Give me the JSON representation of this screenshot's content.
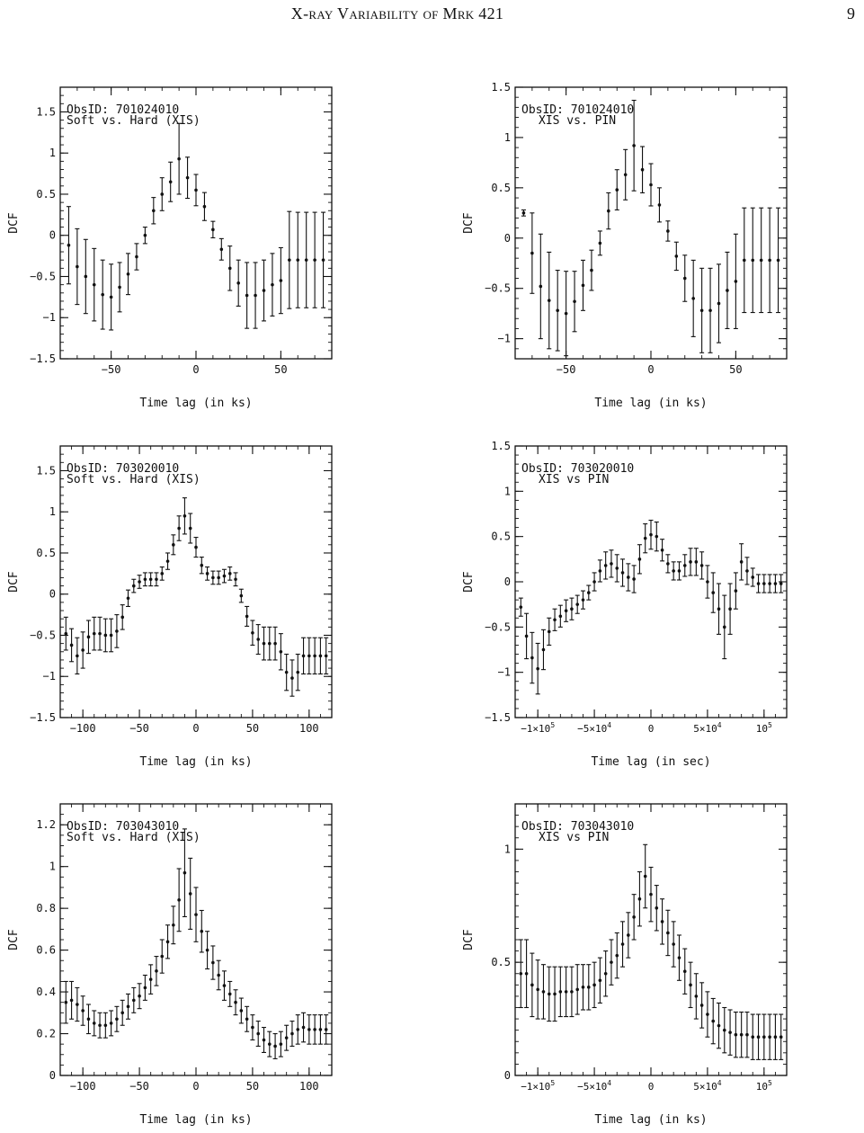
{
  "header": {
    "title": "X-ray Variability of Mrk 421",
    "page_number": "9"
  },
  "chart_data": [
    {
      "type": "scatter",
      "annotation": [
        "ObsID: 701024010",
        "Soft vs. Hard (XIS)"
      ],
      "xlabel": "Time lag (in ks)",
      "ylabel": "DCF",
      "xlim": [
        -80,
        80
      ],
      "ylim": [
        -1.5,
        1.8
      ],
      "xticks": [
        -50,
        0,
        50
      ],
      "yticks": [
        -1.5,
        -1,
        -0.5,
        0,
        0.5,
        1,
        1.5
      ],
      "x": [
        -75,
        -70,
        -65,
        -60,
        -55,
        -50,
        -45,
        -40,
        -35,
        -30,
        -25,
        -20,
        -15,
        -10,
        -5,
        0,
        5,
        10,
        15,
        20,
        25,
        30,
        35,
        40,
        45,
        50,
        55,
        60,
        65,
        70,
        75
      ],
      "y": [
        -0.12,
        -0.38,
        -0.5,
        -0.6,
        -0.72,
        -0.75,
        -0.63,
        -0.47,
        -0.26,
        0.0,
        0.3,
        0.5,
        0.65,
        0.93,
        0.7,
        0.55,
        0.35,
        0.07,
        -0.17,
        -0.4,
        -0.58,
        -0.73,
        -0.73,
        -0.67,
        -0.6,
        -0.55,
        -0.3,
        -0.3,
        -0.3,
        -0.3,
        -0.3
      ],
      "err": [
        0.47,
        0.46,
        0.45,
        0.44,
        0.42,
        0.4,
        0.3,
        0.25,
        0.16,
        0.1,
        0.16,
        0.2,
        0.24,
        0.43,
        0.25,
        0.19,
        0.17,
        0.1,
        0.13,
        0.27,
        0.28,
        0.4,
        0.4,
        0.37,
        0.38,
        0.4,
        0.59,
        0.58,
        0.58,
        0.58,
        0.58
      ]
    },
    {
      "type": "scatter",
      "annotation": [
        "ObsID: 701024010",
        "XIS vs. PIN"
      ],
      "xlabel": "Time lag (in ks)",
      "ylabel": "DCF",
      "xlim": [
        -80,
        80
      ],
      "ylim": [
        -1.2,
        1.5
      ],
      "xticks": [
        -50,
        0,
        50
      ],
      "yticks": [
        -1,
        -0.5,
        0,
        0.5,
        1,
        1.5
      ],
      "x": [
        -75,
        -70,
        -65,
        -60,
        -55,
        -50,
        -45,
        -40,
        -35,
        -30,
        -25,
        -20,
        -15,
        -10,
        -5,
        0,
        5,
        10,
        15,
        20,
        25,
        30,
        35,
        40,
        45,
        50,
        55,
        60,
        65,
        70,
        75
      ],
      "y": [
        0.25,
        -0.15,
        -0.48,
        -0.62,
        -0.72,
        -0.75,
        -0.63,
        -0.47,
        -0.32,
        -0.05,
        0.27,
        0.48,
        0.63,
        0.92,
        0.68,
        0.53,
        0.33,
        0.07,
        -0.18,
        -0.4,
        -0.6,
        -0.72,
        -0.72,
        -0.65,
        -0.52,
        -0.43,
        -0.22,
        -0.22,
        -0.22,
        -0.22,
        -0.22
      ],
      "err": [
        0.03,
        0.4,
        0.52,
        0.48,
        0.4,
        0.42,
        0.3,
        0.25,
        0.2,
        0.12,
        0.18,
        0.2,
        0.25,
        0.45,
        0.23,
        0.21,
        0.17,
        0.1,
        0.14,
        0.23,
        0.38,
        0.42,
        0.42,
        0.39,
        0.38,
        0.47,
        0.52,
        0.52,
        0.52,
        0.52,
        0.52
      ]
    },
    {
      "type": "scatter",
      "annotation": [
        "ObsID: 703020010",
        "Soft vs. Hard (XIS)"
      ],
      "xlabel": "Time lag (in ks)",
      "ylabel": "DCF",
      "xlim": [
        -120,
        120
      ],
      "ylim": [
        -1.5,
        1.8
      ],
      "xticks": [
        -100,
        -50,
        0,
        50,
        100
      ],
      "yticks": [
        -1.5,
        -1,
        -0.5,
        0,
        0.5,
        1,
        1.5
      ],
      "x": [
        -115,
        -110,
        -105,
        -100,
        -95,
        -90,
        -85,
        -80,
        -75,
        -70,
        -65,
        -60,
        -55,
        -50,
        -45,
        -40,
        -35,
        -30,
        -25,
        -20,
        -15,
        -10,
        -5,
        0,
        5,
        10,
        15,
        20,
        25,
        30,
        35,
        40,
        45,
        50,
        55,
        60,
        65,
        70,
        75,
        80,
        85,
        90,
        95,
        100,
        105,
        110,
        115
      ],
      "y": [
        -0.48,
        -0.62,
        -0.75,
        -0.68,
        -0.52,
        -0.48,
        -0.48,
        -0.5,
        -0.5,
        -0.45,
        -0.28,
        -0.05,
        0.1,
        0.15,
        0.18,
        0.18,
        0.18,
        0.25,
        0.4,
        0.6,
        0.8,
        0.95,
        0.8,
        0.57,
        0.35,
        0.25,
        0.2,
        0.2,
        0.22,
        0.25,
        0.18,
        -0.02,
        -0.27,
        -0.47,
        -0.55,
        -0.6,
        -0.6,
        -0.6,
        -0.7,
        -0.95,
        -1.02,
        -0.95,
        -0.75,
        -0.75,
        -0.75,
        -0.75,
        -0.75
      ],
      "err": [
        0.2,
        0.2,
        0.22,
        0.22,
        0.2,
        0.2,
        0.2,
        0.2,
        0.2,
        0.2,
        0.15,
        0.1,
        0.08,
        0.08,
        0.08,
        0.08,
        0.08,
        0.08,
        0.1,
        0.12,
        0.15,
        0.22,
        0.18,
        0.12,
        0.1,
        0.08,
        0.08,
        0.08,
        0.08,
        0.08,
        0.08,
        0.08,
        0.12,
        0.15,
        0.18,
        0.2,
        0.2,
        0.2,
        0.22,
        0.22,
        0.22,
        0.22,
        0.22,
        0.22,
        0.22,
        0.22,
        0.22
      ]
    },
    {
      "type": "scatter",
      "annotation": [
        "ObsID: 703020010",
        "XIS vs PIN"
      ],
      "xlabel": "Time lag (in sec)",
      "ylabel": "DCF",
      "xlim": [
        -120000,
        120000
      ],
      "ylim": [
        -1.5,
        1.5
      ],
      "xticks": [
        -100000,
        -50000,
        0,
        50000,
        100000
      ],
      "xticklabels": [
        [
          "−1×10",
          "5"
        ],
        [
          "−5×10",
          "4"
        ],
        [
          "0",
          ""
        ],
        [
          "5×10",
          "4"
        ],
        [
          "10",
          "5"
        ]
      ],
      "yticks": [
        -1.5,
        -1,
        -0.5,
        0,
        0.5,
        1,
        1.5
      ],
      "x": [
        -115000,
        -110000,
        -105000,
        -100000,
        -95000,
        -90000,
        -85000,
        -80000,
        -75000,
        -70000,
        -65000,
        -60000,
        -55000,
        -50000,
        -45000,
        -40000,
        -35000,
        -30000,
        -25000,
        -20000,
        -15000,
        -10000,
        -5000,
        0,
        5000,
        10000,
        15000,
        20000,
        25000,
        30000,
        35000,
        40000,
        45000,
        50000,
        55000,
        60000,
        65000,
        70000,
        75000,
        80000,
        85000,
        90000,
        95000,
        100000,
        105000,
        110000,
        115000
      ],
      "y": [
        -0.28,
        -0.6,
        -0.84,
        -0.96,
        -0.75,
        -0.55,
        -0.42,
        -0.38,
        -0.32,
        -0.3,
        -0.25,
        -0.2,
        -0.12,
        0.0,
        0.12,
        0.18,
        0.2,
        0.15,
        0.1,
        0.05,
        0.03,
        0.25,
        0.48,
        0.52,
        0.5,
        0.35,
        0.2,
        0.12,
        0.12,
        0.18,
        0.22,
        0.22,
        0.18,
        0.0,
        -0.12,
        -0.3,
        -0.5,
        -0.3,
        -0.1,
        0.22,
        0.12,
        0.05,
        -0.02,
        -0.02,
        -0.02,
        -0.02,
        -0.02
      ],
      "err": [
        0.1,
        0.25,
        0.28,
        0.28,
        0.22,
        0.15,
        0.12,
        0.12,
        0.12,
        0.12,
        0.1,
        0.1,
        0.08,
        0.1,
        0.12,
        0.15,
        0.15,
        0.15,
        0.15,
        0.15,
        0.15,
        0.16,
        0.16,
        0.16,
        0.16,
        0.12,
        0.1,
        0.1,
        0.1,
        0.12,
        0.15,
        0.15,
        0.15,
        0.18,
        0.22,
        0.28,
        0.35,
        0.28,
        0.2,
        0.2,
        0.15,
        0.1,
        0.1,
        0.1,
        0.1,
        0.1,
        0.1
      ]
    },
    {
      "type": "scatter",
      "annotation": [
        "ObsID: 703043010",
        "Soft vs. Hard (XIS)"
      ],
      "xlabel": "Time lag (in ks)",
      "ylabel": "DCF",
      "xlim": [
        -120,
        120
      ],
      "ylim": [
        0,
        1.3
      ],
      "xticks": [
        -100,
        -50,
        0,
        50,
        100
      ],
      "yticks": [
        0,
        0.2,
        0.4,
        0.6,
        0.8,
        1,
        1.2
      ],
      "x": [
        -115,
        -110,
        -105,
        -100,
        -95,
        -90,
        -85,
        -80,
        -75,
        -70,
        -65,
        -60,
        -55,
        -50,
        -45,
        -40,
        -35,
        -30,
        -25,
        -20,
        -15,
        -10,
        -5,
        0,
        5,
        10,
        15,
        20,
        25,
        30,
        35,
        40,
        45,
        50,
        55,
        60,
        65,
        70,
        75,
        80,
        85,
        90,
        95,
        100,
        105,
        110,
        115
      ],
      "y": [
        0.35,
        0.36,
        0.34,
        0.31,
        0.27,
        0.25,
        0.24,
        0.24,
        0.25,
        0.27,
        0.3,
        0.33,
        0.36,
        0.38,
        0.42,
        0.46,
        0.5,
        0.57,
        0.64,
        0.72,
        0.84,
        0.97,
        0.87,
        0.77,
        0.69,
        0.6,
        0.54,
        0.48,
        0.43,
        0.39,
        0.35,
        0.31,
        0.27,
        0.23,
        0.2,
        0.17,
        0.15,
        0.14,
        0.15,
        0.18,
        0.2,
        0.22,
        0.23,
        0.22,
        0.22,
        0.22,
        0.22
      ],
      "err": [
        0.1,
        0.09,
        0.08,
        0.07,
        0.07,
        0.06,
        0.06,
        0.06,
        0.06,
        0.06,
        0.06,
        0.06,
        0.06,
        0.06,
        0.06,
        0.07,
        0.07,
        0.08,
        0.08,
        0.09,
        0.15,
        0.21,
        0.17,
        0.13,
        0.1,
        0.09,
        0.08,
        0.07,
        0.07,
        0.06,
        0.06,
        0.06,
        0.06,
        0.06,
        0.06,
        0.06,
        0.06,
        0.06,
        0.06,
        0.06,
        0.06,
        0.07,
        0.07,
        0.07,
        0.07,
        0.07,
        0.07
      ]
    },
    {
      "type": "scatter",
      "annotation": [
        "ObsID: 703043010",
        "XIS vs PIN"
      ],
      "xlabel": "Time lag (in ks)",
      "ylabel": "DCF",
      "xlim": [
        -120000,
        120000
      ],
      "ylim": [
        0,
        1.2
      ],
      "xticks": [
        -100000,
        -50000,
        0,
        50000,
        100000
      ],
      "xticklabels": [
        [
          "−1×10",
          "5"
        ],
        [
          "−5×10",
          "4"
        ],
        [
          "0",
          ""
        ],
        [
          "5×10",
          "4"
        ],
        [
          "10",
          "5"
        ]
      ],
      "yticks": [
        0,
        0.5,
        1
      ],
      "x": [
        -115000,
        -110000,
        -105000,
        -100000,
        -95000,
        -90000,
        -85000,
        -80000,
        -75000,
        -70000,
        -65000,
        -60000,
        -55000,
        -50000,
        -45000,
        -40000,
        -35000,
        -30000,
        -25000,
        -20000,
        -15000,
        -10000,
        -5000,
        0,
        5000,
        10000,
        15000,
        20000,
        25000,
        30000,
        35000,
        40000,
        45000,
        50000,
        55000,
        60000,
        65000,
        70000,
        75000,
        80000,
        85000,
        90000,
        95000,
        100000,
        105000,
        110000,
        115000
      ],
      "y": [
        0.45,
        0.45,
        0.4,
        0.38,
        0.37,
        0.36,
        0.36,
        0.37,
        0.37,
        0.37,
        0.38,
        0.39,
        0.39,
        0.4,
        0.42,
        0.45,
        0.5,
        0.53,
        0.58,
        0.62,
        0.7,
        0.78,
        0.88,
        0.8,
        0.74,
        0.68,
        0.63,
        0.58,
        0.52,
        0.46,
        0.4,
        0.35,
        0.31,
        0.27,
        0.24,
        0.22,
        0.2,
        0.19,
        0.18,
        0.18,
        0.18,
        0.17,
        0.17,
        0.17,
        0.17,
        0.17,
        0.17
      ],
      "err": [
        0.15,
        0.15,
        0.14,
        0.13,
        0.12,
        0.12,
        0.12,
        0.11,
        0.11,
        0.11,
        0.11,
        0.1,
        0.1,
        0.1,
        0.1,
        0.1,
        0.1,
        0.1,
        0.1,
        0.1,
        0.1,
        0.12,
        0.14,
        0.12,
        0.1,
        0.1,
        0.1,
        0.1,
        0.1,
        0.1,
        0.1,
        0.1,
        0.1,
        0.1,
        0.1,
        0.1,
        0.1,
        0.1,
        0.1,
        0.1,
        0.1,
        0.1,
        0.1,
        0.1,
        0.1,
        0.1,
        0.1
      ]
    }
  ]
}
